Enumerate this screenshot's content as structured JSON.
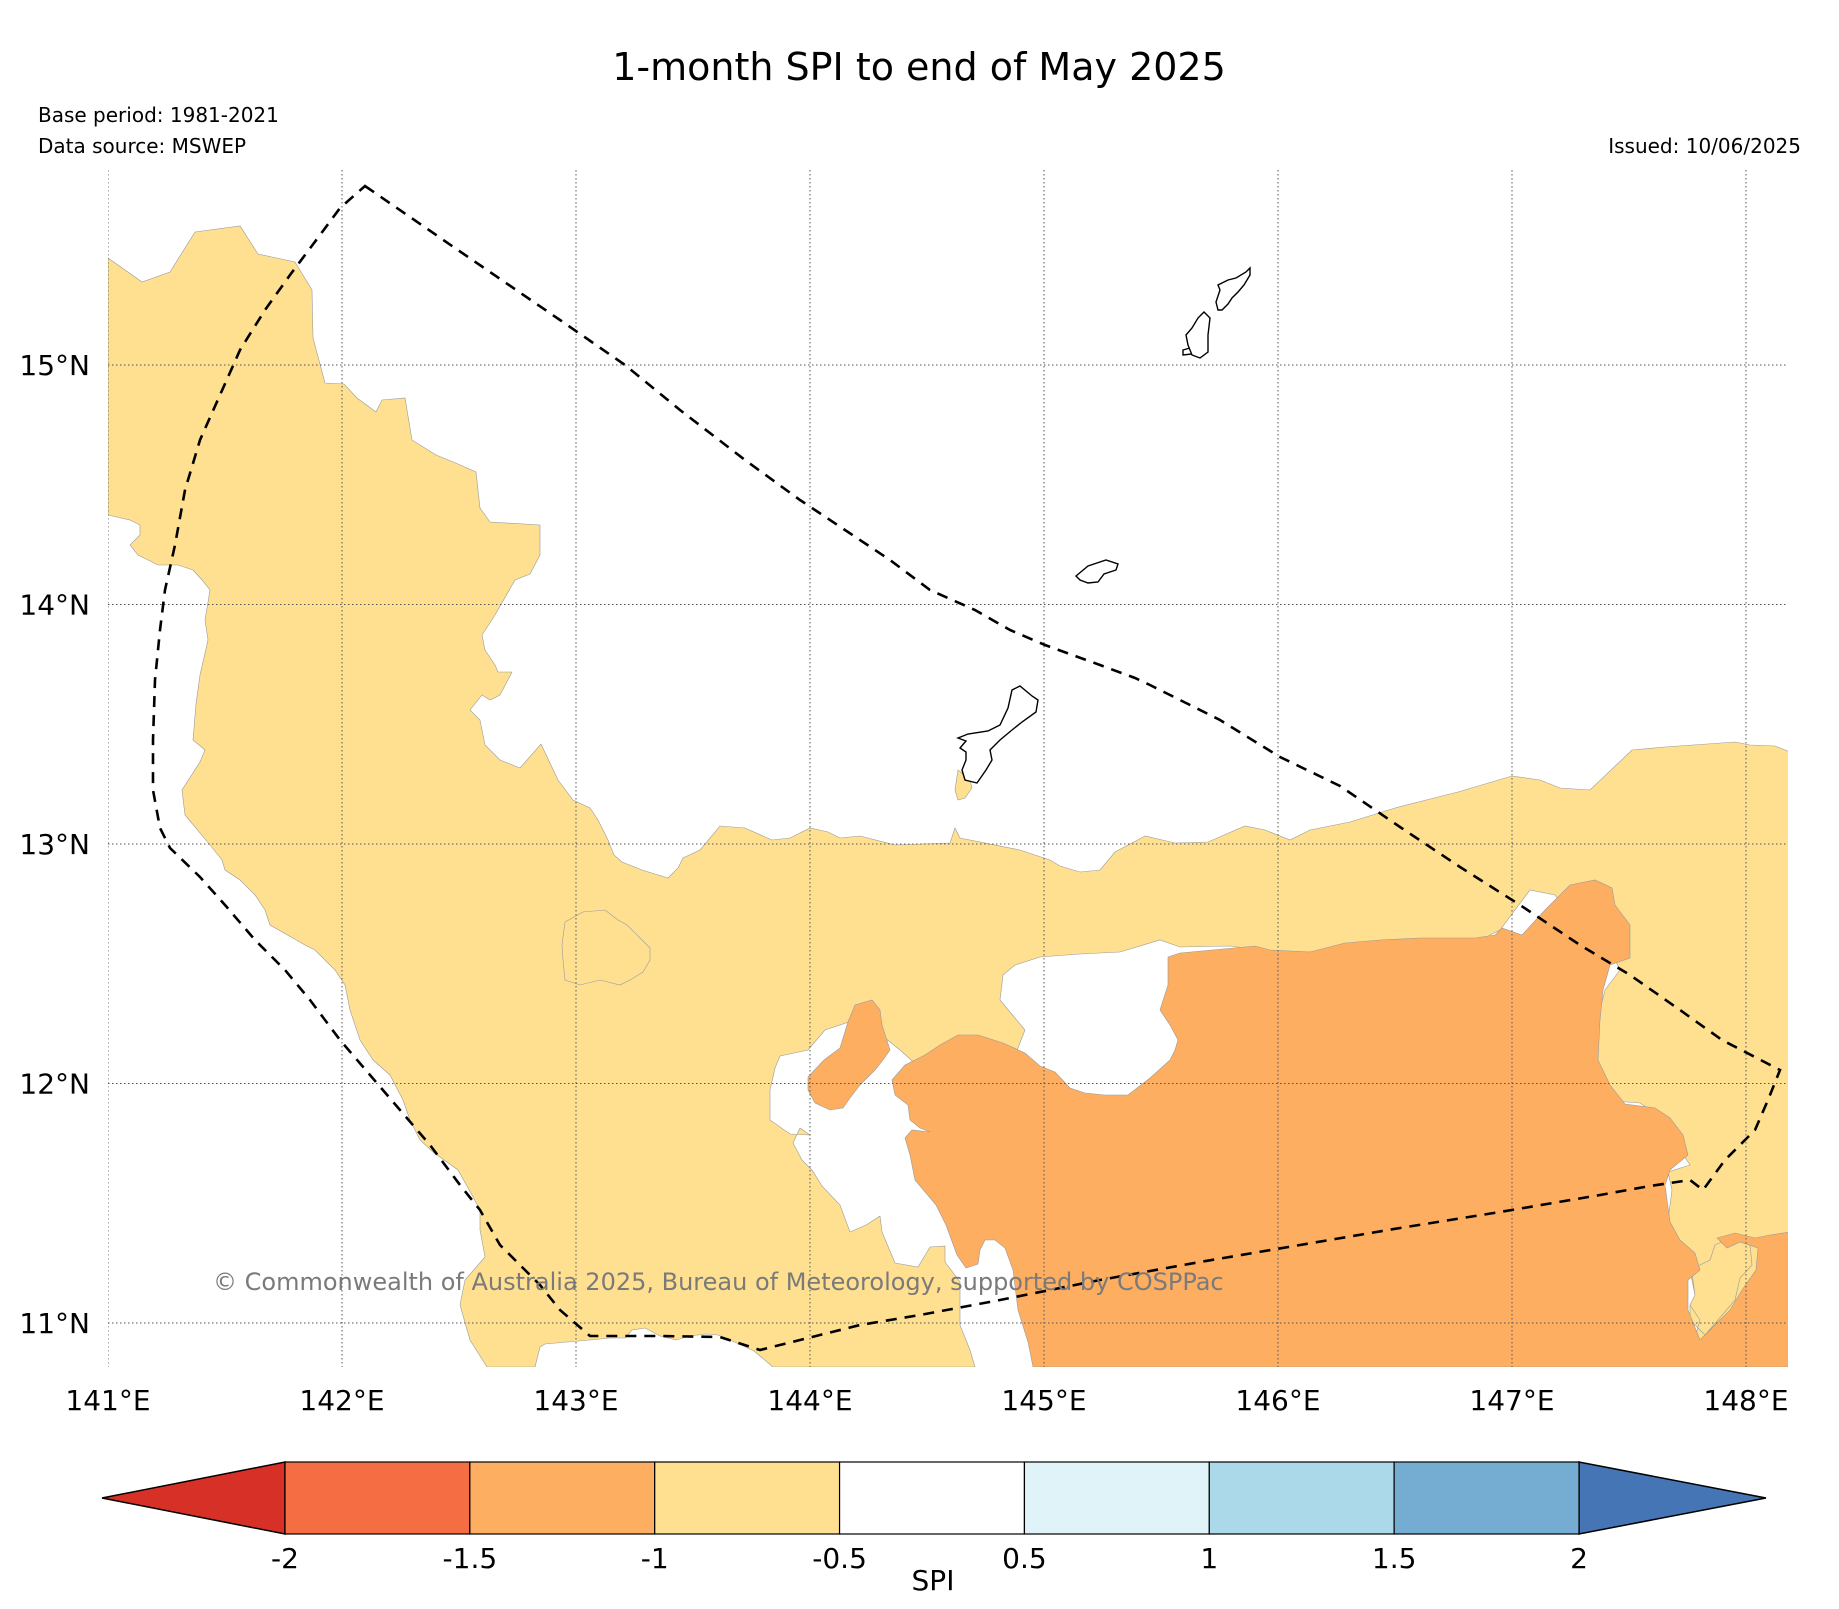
{
  "title": "1-month SPI to end of May 2025",
  "base_period": "Base period: 1981-2021",
  "data_source": "Data source: MSWEP",
  "issued": "Issued: 10/06/2025",
  "copyright": "© Commonwealth of Australia 2025, Bureau of Meteorology, supported by COSPPac",
  "map": {
    "lon_ticks": [
      "141°E",
      "142°E",
      "143°E",
      "144°E",
      "145°E",
      "146°E",
      "147°E",
      "148°E"
    ],
    "lat_ticks": [
      "15°N",
      "14°N",
      "13°N",
      "12°N",
      "11°N"
    ],
    "lon_range": [
      141.0,
      148.2
    ],
    "lat_range": [
      10.8,
      15.75
    ],
    "grid": true,
    "eez_boundary": "dashed"
  },
  "colorbar": {
    "label": "SPI",
    "ticks": [
      "-2",
      "-1.5",
      "-1",
      "-0.5",
      "0.5",
      "1",
      "1.5",
      "2"
    ],
    "under_color": "#d73027",
    "over_color": "#4575b4",
    "bins": [
      {
        "min": -2.0,
        "max": -1.5,
        "color": "#f46d43"
      },
      {
        "min": -1.5,
        "max": -1.0,
        "color": "#fdae61"
      },
      {
        "min": -1.0,
        "max": -0.5,
        "color": "#fee090"
      },
      {
        "min": -0.5,
        "max": 0.5,
        "color": "#ffffff"
      },
      {
        "min": 0.5,
        "max": 1.0,
        "color": "#e0f3f8"
      },
      {
        "min": 1.0,
        "max": 1.5,
        "color": "#abd9e9"
      },
      {
        "min": 1.5,
        "max": 2.0,
        "color": "#74add1"
      }
    ]
  }
}
